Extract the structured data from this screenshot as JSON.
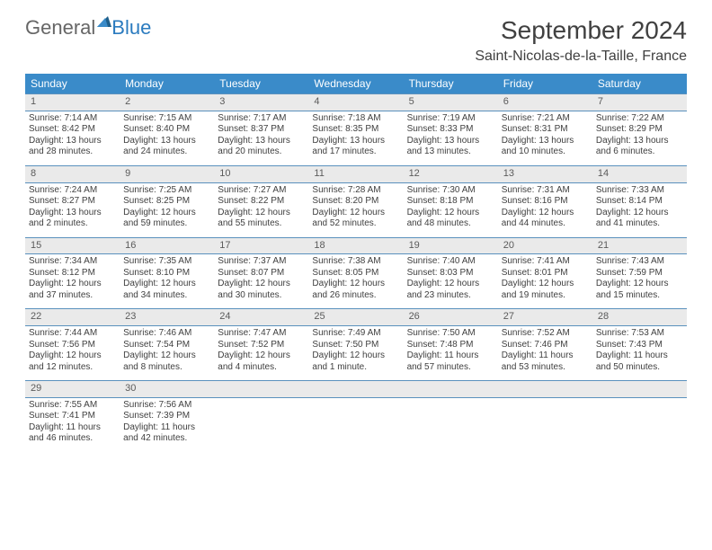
{
  "logo": {
    "part1": "General",
    "part2": "Blue"
  },
  "title": {
    "month": "September 2024",
    "location": "Saint-Nicolas-de-la-Taille, France"
  },
  "colors": {
    "header_bg": "#3a8bc9",
    "accent_border": "#5a91bd",
    "daynum_bg": "#eaeaea",
    "logo_gray": "#666666",
    "logo_blue": "#2b7bbf",
    "text": "#404040"
  },
  "weekdays": [
    "Sunday",
    "Monday",
    "Tuesday",
    "Wednesday",
    "Thursday",
    "Friday",
    "Saturday"
  ],
  "weeks": [
    {
      "days": [
        {
          "n": "1",
          "sunrise": "7:14 AM",
          "sunset": "8:42 PM",
          "daylight": "13 hours and 28 minutes."
        },
        {
          "n": "2",
          "sunrise": "7:15 AM",
          "sunset": "8:40 PM",
          "daylight": "13 hours and 24 minutes."
        },
        {
          "n": "3",
          "sunrise": "7:17 AM",
          "sunset": "8:37 PM",
          "daylight": "13 hours and 20 minutes."
        },
        {
          "n": "4",
          "sunrise": "7:18 AM",
          "sunset": "8:35 PM",
          "daylight": "13 hours and 17 minutes."
        },
        {
          "n": "5",
          "sunrise": "7:19 AM",
          "sunset": "8:33 PM",
          "daylight": "13 hours and 13 minutes."
        },
        {
          "n": "6",
          "sunrise": "7:21 AM",
          "sunset": "8:31 PM",
          "daylight": "13 hours and 10 minutes."
        },
        {
          "n": "7",
          "sunrise": "7:22 AM",
          "sunset": "8:29 PM",
          "daylight": "13 hours and 6 minutes."
        }
      ]
    },
    {
      "days": [
        {
          "n": "8",
          "sunrise": "7:24 AM",
          "sunset": "8:27 PM",
          "daylight": "13 hours and 2 minutes."
        },
        {
          "n": "9",
          "sunrise": "7:25 AM",
          "sunset": "8:25 PM",
          "daylight": "12 hours and 59 minutes."
        },
        {
          "n": "10",
          "sunrise": "7:27 AM",
          "sunset": "8:22 PM",
          "daylight": "12 hours and 55 minutes."
        },
        {
          "n": "11",
          "sunrise": "7:28 AM",
          "sunset": "8:20 PM",
          "daylight": "12 hours and 52 minutes."
        },
        {
          "n": "12",
          "sunrise": "7:30 AM",
          "sunset": "8:18 PM",
          "daylight": "12 hours and 48 minutes."
        },
        {
          "n": "13",
          "sunrise": "7:31 AM",
          "sunset": "8:16 PM",
          "daylight": "12 hours and 44 minutes."
        },
        {
          "n": "14",
          "sunrise": "7:33 AM",
          "sunset": "8:14 PM",
          "daylight": "12 hours and 41 minutes."
        }
      ]
    },
    {
      "days": [
        {
          "n": "15",
          "sunrise": "7:34 AM",
          "sunset": "8:12 PM",
          "daylight": "12 hours and 37 minutes."
        },
        {
          "n": "16",
          "sunrise": "7:35 AM",
          "sunset": "8:10 PM",
          "daylight": "12 hours and 34 minutes."
        },
        {
          "n": "17",
          "sunrise": "7:37 AM",
          "sunset": "8:07 PM",
          "daylight": "12 hours and 30 minutes."
        },
        {
          "n": "18",
          "sunrise": "7:38 AM",
          "sunset": "8:05 PM",
          "daylight": "12 hours and 26 minutes."
        },
        {
          "n": "19",
          "sunrise": "7:40 AM",
          "sunset": "8:03 PM",
          "daylight": "12 hours and 23 minutes."
        },
        {
          "n": "20",
          "sunrise": "7:41 AM",
          "sunset": "8:01 PM",
          "daylight": "12 hours and 19 minutes."
        },
        {
          "n": "21",
          "sunrise": "7:43 AM",
          "sunset": "7:59 PM",
          "daylight": "12 hours and 15 minutes."
        }
      ]
    },
    {
      "days": [
        {
          "n": "22",
          "sunrise": "7:44 AM",
          "sunset": "7:56 PM",
          "daylight": "12 hours and 12 minutes."
        },
        {
          "n": "23",
          "sunrise": "7:46 AM",
          "sunset": "7:54 PM",
          "daylight": "12 hours and 8 minutes."
        },
        {
          "n": "24",
          "sunrise": "7:47 AM",
          "sunset": "7:52 PM",
          "daylight": "12 hours and 4 minutes."
        },
        {
          "n": "25",
          "sunrise": "7:49 AM",
          "sunset": "7:50 PM",
          "daylight": "12 hours and 1 minute."
        },
        {
          "n": "26",
          "sunrise": "7:50 AM",
          "sunset": "7:48 PM",
          "daylight": "11 hours and 57 minutes."
        },
        {
          "n": "27",
          "sunrise": "7:52 AM",
          "sunset": "7:46 PM",
          "daylight": "11 hours and 53 minutes."
        },
        {
          "n": "28",
          "sunrise": "7:53 AM",
          "sunset": "7:43 PM",
          "daylight": "11 hours and 50 minutes."
        }
      ]
    },
    {
      "days": [
        {
          "n": "29",
          "sunrise": "7:55 AM",
          "sunset": "7:41 PM",
          "daylight": "11 hours and 46 minutes."
        },
        {
          "n": "30",
          "sunrise": "7:56 AM",
          "sunset": "7:39 PM",
          "daylight": "11 hours and 42 minutes."
        },
        null,
        null,
        null,
        null,
        null
      ]
    }
  ],
  "labels": {
    "sunrise": "Sunrise: ",
    "sunset": "Sunset: ",
    "daylight": "Daylight: "
  }
}
